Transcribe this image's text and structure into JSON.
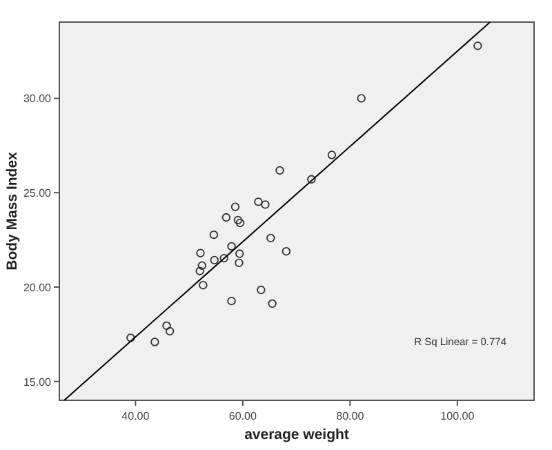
{
  "chart_data": {
    "type": "scatter",
    "xlabel": "average weight",
    "ylabel": "Body Mass Index",
    "xlim": [
      25.8,
      114.3
    ],
    "ylim": [
      14.0,
      34.04
    ],
    "xticks": [
      {
        "value": 40,
        "label": "40.00"
      },
      {
        "value": 60,
        "label": "60.00"
      },
      {
        "value": 80,
        "label": "80.00"
      },
      {
        "value": 100,
        "label": "100.00"
      }
    ],
    "yticks": [
      {
        "value": 15,
        "label": "15.00"
      },
      {
        "value": 20,
        "label": "20.00"
      },
      {
        "value": 25,
        "label": "25.00"
      },
      {
        "value": 30,
        "label": "30.00"
      }
    ],
    "grid": false,
    "annotations": [
      "R Sq Linear = 0.774"
    ],
    "series": [
      {
        "color": "#333333",
        "marker": "circle",
        "x": [
          103.8,
          82.1,
          76.6,
          72.8,
          66.9,
          62.9,
          64.2,
          58.6,
          56.9,
          59.1,
          59.5,
          54.6,
          57.9,
          65.2,
          68.1,
          52.1,
          59.4,
          56.5,
          54.7,
          52.4,
          59.3,
          52.0,
          52.6,
          63.4,
          57.9,
          65.5,
          45.8,
          46.4,
          39.1,
          43.6
        ],
        "values": [
          32.78,
          30.0,
          27.0,
          25.71,
          26.18,
          24.52,
          24.37,
          24.25,
          23.69,
          23.55,
          23.4,
          22.77,
          22.16,
          22.6,
          21.89,
          21.8,
          21.77,
          21.53,
          21.43,
          21.14,
          21.28,
          20.85,
          20.1,
          19.85,
          19.26,
          19.12,
          17.95,
          17.66,
          17.31,
          17.09
        ]
      },
      {
        "type": "line",
        "color": "#000000",
        "line_style": "solid",
        "marker": "none",
        "x": [
          26.7,
          106.1
        ],
        "values": [
          14.0,
          34.04
        ]
      }
    ]
  }
}
